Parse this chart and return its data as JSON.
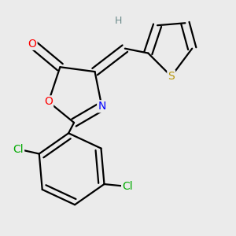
{
  "bg_color": "#ebebeb",
  "bond_color": "#000000",
  "atom_colors": {
    "O_red": "#ff0000",
    "O_carbonyl": "#ff0000",
    "N": "#0000ff",
    "S": "#b8960c",
    "Cl": "#00aa00",
    "C": "#000000",
    "H": "#6a8a8a"
  },
  "line_width": 1.6,
  "dbo": 0.018
}
